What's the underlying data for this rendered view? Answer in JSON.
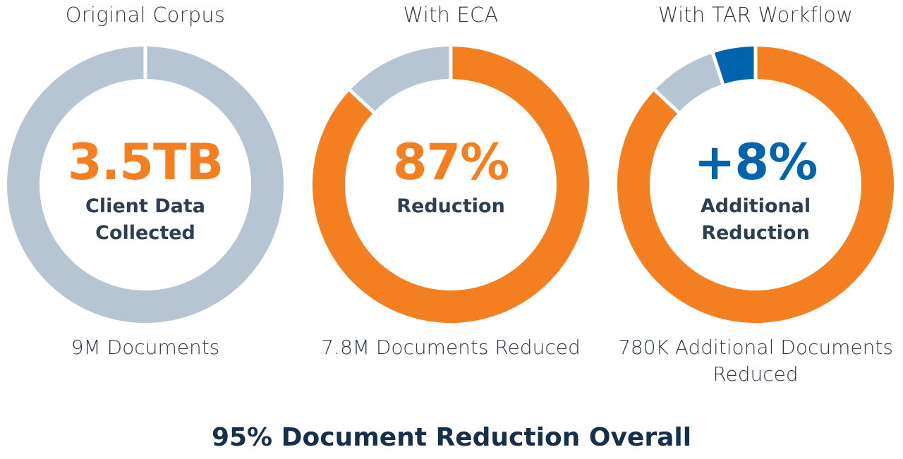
{
  "colors": {
    "gray": "#b6c5d1",
    "orange": "#f37f20",
    "blue": "#0064ad",
    "navy": "#14304d",
    "text": "#2f3b4a",
    "label": "#2c3e50"
  },
  "chart_data": [
    {
      "type": "pie",
      "title": "Original Corpus",
      "center_value": "3.5TB",
      "center_label": "Client Data Collected",
      "footnote": "9M Documents",
      "slices": [
        {
          "value": 100,
          "color": "#b6c5d1"
        }
      ]
    },
    {
      "type": "pie",
      "title": "With ECA",
      "center_value": "87%",
      "center_label": "Reduction",
      "footnote": "7.8M Documents Reduced",
      "slices": [
        {
          "value": 87,
          "color": "#f37f20"
        },
        {
          "value": 13,
          "color": "#b6c5d1"
        }
      ]
    },
    {
      "type": "pie",
      "title": "With TAR Workflow",
      "center_value": "+8%",
      "center_label": "Additional Reduction",
      "footnote": "780K Additional Documents Reduced",
      "slices": [
        {
          "value": 87,
          "color": "#f37f20"
        },
        {
          "value": 8,
          "color": "#b6c5d1"
        },
        {
          "value": 5,
          "color": "#0064ad"
        }
      ]
    }
  ],
  "overall_text": "95% Document Reduction Overall"
}
